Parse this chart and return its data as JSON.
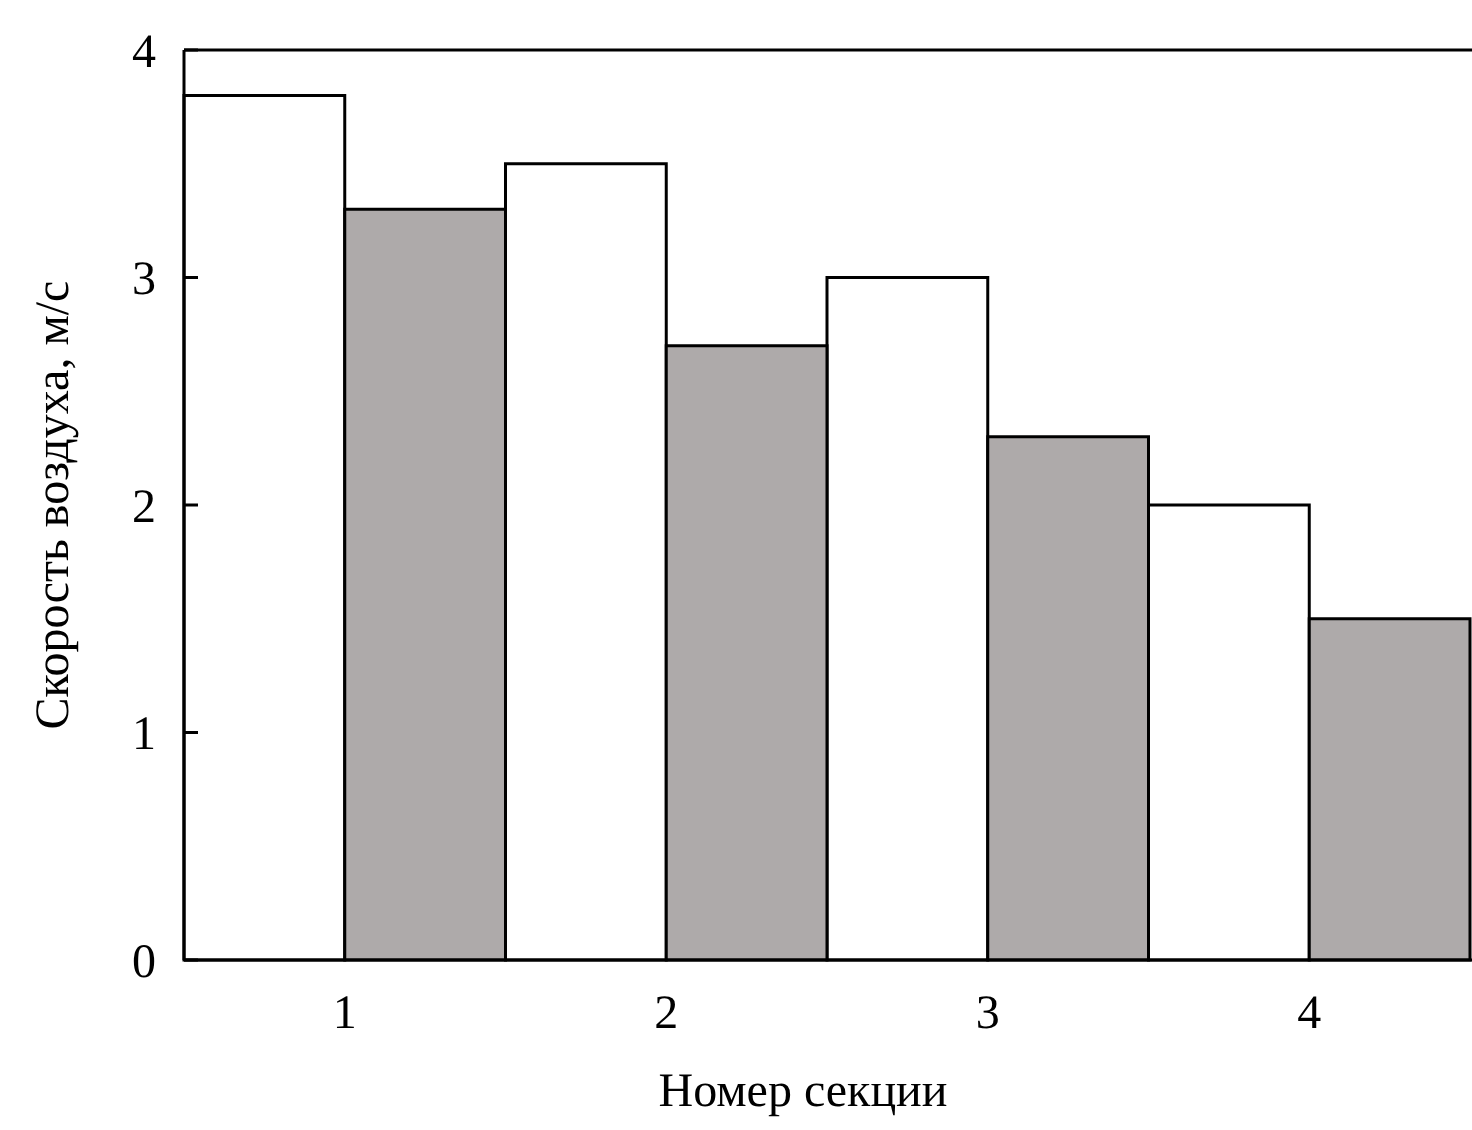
{
  "chart_data": {
    "type": "bar",
    "xlabel": "Номер секции",
    "ylabel": "Скорость воздуха, м/с",
    "categories": [
      "1",
      "2",
      "3",
      "4"
    ],
    "series": [
      {
        "color": "#ffffff",
        "values": [
          3.8,
          3.5,
          3.0,
          2.0
        ]
      },
      {
        "color": "#aeaaaa",
        "values": [
          3.3,
          2.7,
          2.3,
          1.5
        ]
      }
    ],
    "ylim": [
      0,
      4
    ],
    "yticks": [
      0,
      1,
      2,
      3,
      4
    ]
  }
}
